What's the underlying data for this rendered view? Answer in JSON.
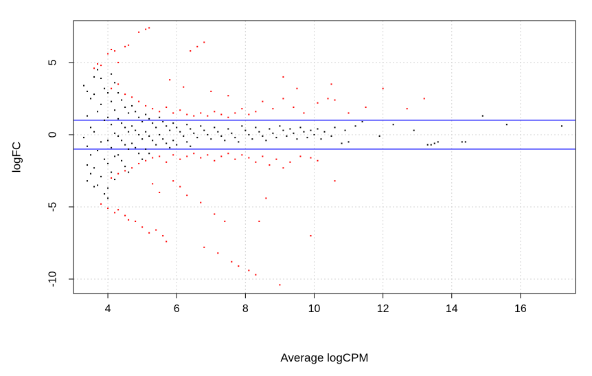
{
  "chart_data": {
    "type": "scatter",
    "title": "",
    "xlabel": "Average logCPM",
    "ylabel": "logFC",
    "xlim": [
      3.0,
      17.6
    ],
    "ylim": [
      -11.0,
      7.9
    ],
    "xticks": [
      4,
      6,
      8,
      10,
      12,
      14,
      16
    ],
    "xtick_labels": [
      "4",
      "6",
      "8",
      "10",
      "12",
      "14",
      "16"
    ],
    "yticks": [
      -10,
      -5,
      0,
      5
    ],
    "ytick_labels": [
      "-10",
      "-5",
      "0",
      "5"
    ],
    "grid": true,
    "grid_style": "dotted",
    "legend": "none",
    "hlines": [
      {
        "y": 1,
        "color": "#0000ff"
      },
      {
        "y": -1,
        "color": "#0000ff"
      }
    ],
    "series": [
      {
        "color": "#000000",
        "points": [
          [
            3.3,
            3.4
          ],
          [
            3.4,
            3.0
          ],
          [
            3.5,
            2.5
          ],
          [
            3.4,
            1.3
          ],
          [
            3.5,
            0.5
          ],
          [
            3.3,
            -0.2
          ],
          [
            3.4,
            -0.8
          ],
          [
            3.5,
            -1.4
          ],
          [
            3.4,
            -2.1
          ],
          [
            3.5,
            -2.7
          ],
          [
            3.4,
            -3.2
          ],
          [
            3.6,
            -3.6
          ],
          [
            3.6,
            4.0
          ],
          [
            3.7,
            4.5
          ],
          [
            3.8,
            3.9
          ],
          [
            3.9,
            3.2
          ],
          [
            3.6,
            2.8
          ],
          [
            3.8,
            2.1
          ],
          [
            3.7,
            1.6
          ],
          [
            3.9,
            1.0
          ],
          [
            3.6,
            0.2
          ],
          [
            3.8,
            -0.5
          ],
          [
            3.7,
            -1.1
          ],
          [
            3.9,
            -1.7
          ],
          [
            3.6,
            -2.3
          ],
          [
            3.8,
            -2.9
          ],
          [
            3.7,
            -3.5
          ],
          [
            3.9,
            -4.1
          ],
          [
            4.0,
            -4.4
          ],
          [
            4.1,
            4.2
          ],
          [
            4.2,
            3.6
          ],
          [
            4.0,
            2.9
          ],
          [
            4.1,
            2.3
          ],
          [
            4.2,
            1.7
          ],
          [
            4.0,
            1.2
          ],
          [
            4.1,
            0.7
          ],
          [
            4.2,
            0.1
          ],
          [
            4.0,
            -0.4
          ],
          [
            4.1,
            -0.9
          ],
          [
            4.2,
            -1.5
          ],
          [
            4.0,
            -2.0
          ],
          [
            4.1,
            -2.6
          ],
          [
            4.2,
            -3.1
          ],
          [
            4.0,
            -3.7
          ],
          [
            4.3,
            2.9
          ],
          [
            4.4,
            2.4
          ],
          [
            4.5,
            1.9
          ],
          [
            4.6,
            1.5
          ],
          [
            4.3,
            1.1
          ],
          [
            4.4,
            0.8
          ],
          [
            4.5,
            0.5
          ],
          [
            4.6,
            0.2
          ],
          [
            4.3,
            -0.1
          ],
          [
            4.4,
            -0.4
          ],
          [
            4.5,
            -0.7
          ],
          [
            4.6,
            -1.0
          ],
          [
            4.3,
            -1.4
          ],
          [
            4.4,
            -1.8
          ],
          [
            4.5,
            -2.2
          ],
          [
            4.6,
            -2.6
          ],
          [
            4.7,
            2.0
          ],
          [
            4.8,
            1.6
          ],
          [
            4.9,
            1.2
          ],
          [
            5.0,
            0.9
          ],
          [
            4.7,
            0.6
          ],
          [
            4.8,
            0.3
          ],
          [
            4.9,
            0.0
          ],
          [
            5.0,
            -0.3
          ],
          [
            4.7,
            -0.6
          ],
          [
            4.8,
            -0.9
          ],
          [
            4.9,
            -1.3
          ],
          [
            5.0,
            -1.7
          ],
          [
            5.1,
            1.4
          ],
          [
            5.2,
            1.1
          ],
          [
            5.3,
            0.8
          ],
          [
            5.4,
            0.5
          ],
          [
            5.1,
            0.2
          ],
          [
            5.2,
            -0.1
          ],
          [
            5.3,
            -0.4
          ],
          [
            5.4,
            -0.7
          ],
          [
            5.1,
            -1.0
          ],
          [
            5.2,
            -1.3
          ],
          [
            5.5,
            1.2
          ],
          [
            5.6,
            0.9
          ],
          [
            5.7,
            0.6
          ],
          [
            5.8,
            0.3
          ],
          [
            5.5,
            0.0
          ],
          [
            5.6,
            -0.3
          ],
          [
            5.7,
            -0.6
          ],
          [
            5.8,
            -0.9
          ],
          [
            5.9,
            0.8
          ],
          [
            6.0,
            0.5
          ],
          [
            6.1,
            0.2
          ],
          [
            6.2,
            -0.1
          ],
          [
            5.9,
            -0.4
          ],
          [
            6.0,
            -0.7
          ],
          [
            6.3,
            0.7
          ],
          [
            6.4,
            0.4
          ],
          [
            6.5,
            0.1
          ],
          [
            6.6,
            -0.2
          ],
          [
            6.3,
            -0.5
          ],
          [
            6.4,
            -0.8
          ],
          [
            6.7,
            0.6
          ],
          [
            6.8,
            0.3
          ],
          [
            6.9,
            0.0
          ],
          [
            7.0,
            -0.3
          ],
          [
            7.1,
            0.5
          ],
          [
            7.2,
            0.2
          ],
          [
            7.3,
            -0.1
          ],
          [
            7.4,
            -0.4
          ],
          [
            7.5,
            0.4
          ],
          [
            7.6,
            0.1
          ],
          [
            7.7,
            -0.2
          ],
          [
            7.8,
            -0.5
          ],
          [
            7.9,
            0.6
          ],
          [
            8.0,
            0.3
          ],
          [
            8.1,
            0.0
          ],
          [
            8.2,
            -0.3
          ],
          [
            8.3,
            0.5
          ],
          [
            8.4,
            0.2
          ],
          [
            8.5,
            -0.1
          ],
          [
            8.6,
            -0.4
          ],
          [
            8.7,
            0.4
          ],
          [
            8.8,
            0.1
          ],
          [
            8.9,
            -0.2
          ],
          [
            9.0,
            0.6
          ],
          [
            9.1,
            0.3
          ],
          [
            9.2,
            -0.1
          ],
          [
            9.3,
            0.4
          ],
          [
            9.4,
            0.1
          ],
          [
            9.5,
            -0.3
          ],
          [
            9.6,
            0.5
          ],
          [
            9.7,
            0.2
          ],
          [
            9.8,
            -0.2
          ],
          [
            9.9,
            0.3
          ],
          [
            10.0,
            0.0
          ],
          [
            10.1,
            0.4
          ],
          [
            10.2,
            -0.3
          ],
          [
            10.3,
            0.2
          ],
          [
            10.5,
            -0.1
          ],
          [
            10.6,
            0.5
          ],
          [
            10.8,
            -0.6
          ],
          [
            10.9,
            0.3
          ],
          [
            11.0,
            -0.5
          ],
          [
            11.2,
            0.6
          ],
          [
            11.4,
            0.9
          ],
          [
            11.9,
            -0.1
          ],
          [
            12.3,
            0.7
          ],
          [
            12.9,
            0.3
          ],
          [
            13.3,
            -0.7
          ],
          [
            13.4,
            -0.7
          ],
          [
            13.5,
            -0.6
          ],
          [
            13.6,
            -0.5
          ],
          [
            14.3,
            -0.5
          ],
          [
            14.4,
            -0.5
          ],
          [
            14.9,
            1.3
          ],
          [
            15.6,
            0.7
          ],
          [
            17.2,
            0.6
          ]
        ]
      },
      {
        "color": "#ff0000",
        "points": [
          [
            3.6,
            4.6
          ],
          [
            3.7,
            4.9
          ],
          [
            3.8,
            4.8
          ],
          [
            4.0,
            5.6
          ],
          [
            4.1,
            5.9
          ],
          [
            4.2,
            5.8
          ],
          [
            4.3,
            5.0
          ],
          [
            4.5,
            6.1
          ],
          [
            4.6,
            6.2
          ],
          [
            4.9,
            7.1
          ],
          [
            5.1,
            7.3
          ],
          [
            5.2,
            7.4
          ],
          [
            3.8,
            -4.8
          ],
          [
            4.0,
            -5.1
          ],
          [
            4.2,
            -5.4
          ],
          [
            4.3,
            -5.2
          ],
          [
            4.5,
            -5.6
          ],
          [
            4.6,
            -5.9
          ],
          [
            4.8,
            -6.0
          ],
          [
            5.0,
            -6.4
          ],
          [
            5.2,
            -6.8
          ],
          [
            5.4,
            -6.6
          ],
          [
            5.6,
            -7.0
          ],
          [
            5.7,
            -7.4
          ],
          [
            4.1,
            3.2
          ],
          [
            4.3,
            3.5
          ],
          [
            4.5,
            2.8
          ],
          [
            4.7,
            2.6
          ],
          [
            4.9,
            2.3
          ],
          [
            5.1,
            2.0
          ],
          [
            5.3,
            1.8
          ],
          [
            5.5,
            1.6
          ],
          [
            5.7,
            1.9
          ],
          [
            5.9,
            1.5
          ],
          [
            6.1,
            1.7
          ],
          [
            6.3,
            1.4
          ],
          [
            6.5,
            1.3
          ],
          [
            6.7,
            1.5
          ],
          [
            6.9,
            1.3
          ],
          [
            7.1,
            1.6
          ],
          [
            7.3,
            1.4
          ],
          [
            7.5,
            1.2
          ],
          [
            7.7,
            1.5
          ],
          [
            7.9,
            1.8
          ],
          [
            8.1,
            1.4
          ],
          [
            8.3,
            1.6
          ],
          [
            8.5,
            2.3
          ],
          [
            8.8,
            1.8
          ],
          [
            9.1,
            2.5
          ],
          [
            9.4,
            1.9
          ],
          [
            9.7,
            1.5
          ],
          [
            10.1,
            2.2
          ],
          [
            10.4,
            2.5
          ],
          [
            10.6,
            2.4
          ],
          [
            11.0,
            1.5
          ],
          [
            11.5,
            1.9
          ],
          [
            12.0,
            3.2
          ],
          [
            12.7,
            1.8
          ],
          [
            13.2,
            2.5
          ],
          [
            4.1,
            -3.0
          ],
          [
            4.3,
            -2.7
          ],
          [
            4.5,
            -2.5
          ],
          [
            4.7,
            -2.3
          ],
          [
            4.9,
            -2.0
          ],
          [
            5.1,
            -1.8
          ],
          [
            5.3,
            -1.6
          ],
          [
            5.5,
            -1.5
          ],
          [
            5.7,
            -1.9
          ],
          [
            5.9,
            -1.4
          ],
          [
            6.1,
            -1.7
          ],
          [
            6.3,
            -1.5
          ],
          [
            6.5,
            -1.3
          ],
          [
            6.7,
            -1.6
          ],
          [
            6.9,
            -1.4
          ],
          [
            7.1,
            -1.8
          ],
          [
            7.3,
            -1.5
          ],
          [
            7.5,
            -1.3
          ],
          [
            7.7,
            -1.7
          ],
          [
            7.9,
            -1.4
          ],
          [
            8.1,
            -1.6
          ],
          [
            8.3,
            -1.9
          ],
          [
            8.5,
            -1.5
          ],
          [
            8.7,
            -2.1
          ],
          [
            8.9,
            -1.7
          ],
          [
            9.1,
            -2.3
          ],
          [
            9.3,
            -1.9
          ],
          [
            9.6,
            -1.5
          ],
          [
            9.9,
            -1.6
          ],
          [
            10.1,
            -1.8
          ],
          [
            10.6,
            -3.2
          ],
          [
            6.4,
            5.8
          ],
          [
            6.6,
            6.1
          ],
          [
            6.8,
            6.4
          ],
          [
            5.8,
            3.8
          ],
          [
            6.2,
            3.3
          ],
          [
            7.0,
            3.0
          ],
          [
            7.5,
            2.7
          ],
          [
            9.1,
            4.0
          ],
          [
            9.5,
            3.2
          ],
          [
            10.5,
            3.5
          ],
          [
            6.3,
            -4.2
          ],
          [
            6.7,
            -4.7
          ],
          [
            7.1,
            -5.5
          ],
          [
            7.4,
            -6.0
          ],
          [
            7.6,
            -8.8
          ],
          [
            7.8,
            -9.1
          ],
          [
            8.1,
            -9.4
          ],
          [
            8.3,
            -9.7
          ],
          [
            8.6,
            -4.4
          ],
          [
            8.4,
            -6.0
          ],
          [
            9.0,
            -10.4
          ],
          [
            9.9,
            -7.0
          ],
          [
            6.8,
            -7.8
          ],
          [
            7.2,
            -8.2
          ],
          [
            5.9,
            -3.2
          ],
          [
            6.1,
            -3.6
          ],
          [
            5.3,
            -3.4
          ],
          [
            5.5,
            -4.0
          ]
        ]
      }
    ]
  }
}
